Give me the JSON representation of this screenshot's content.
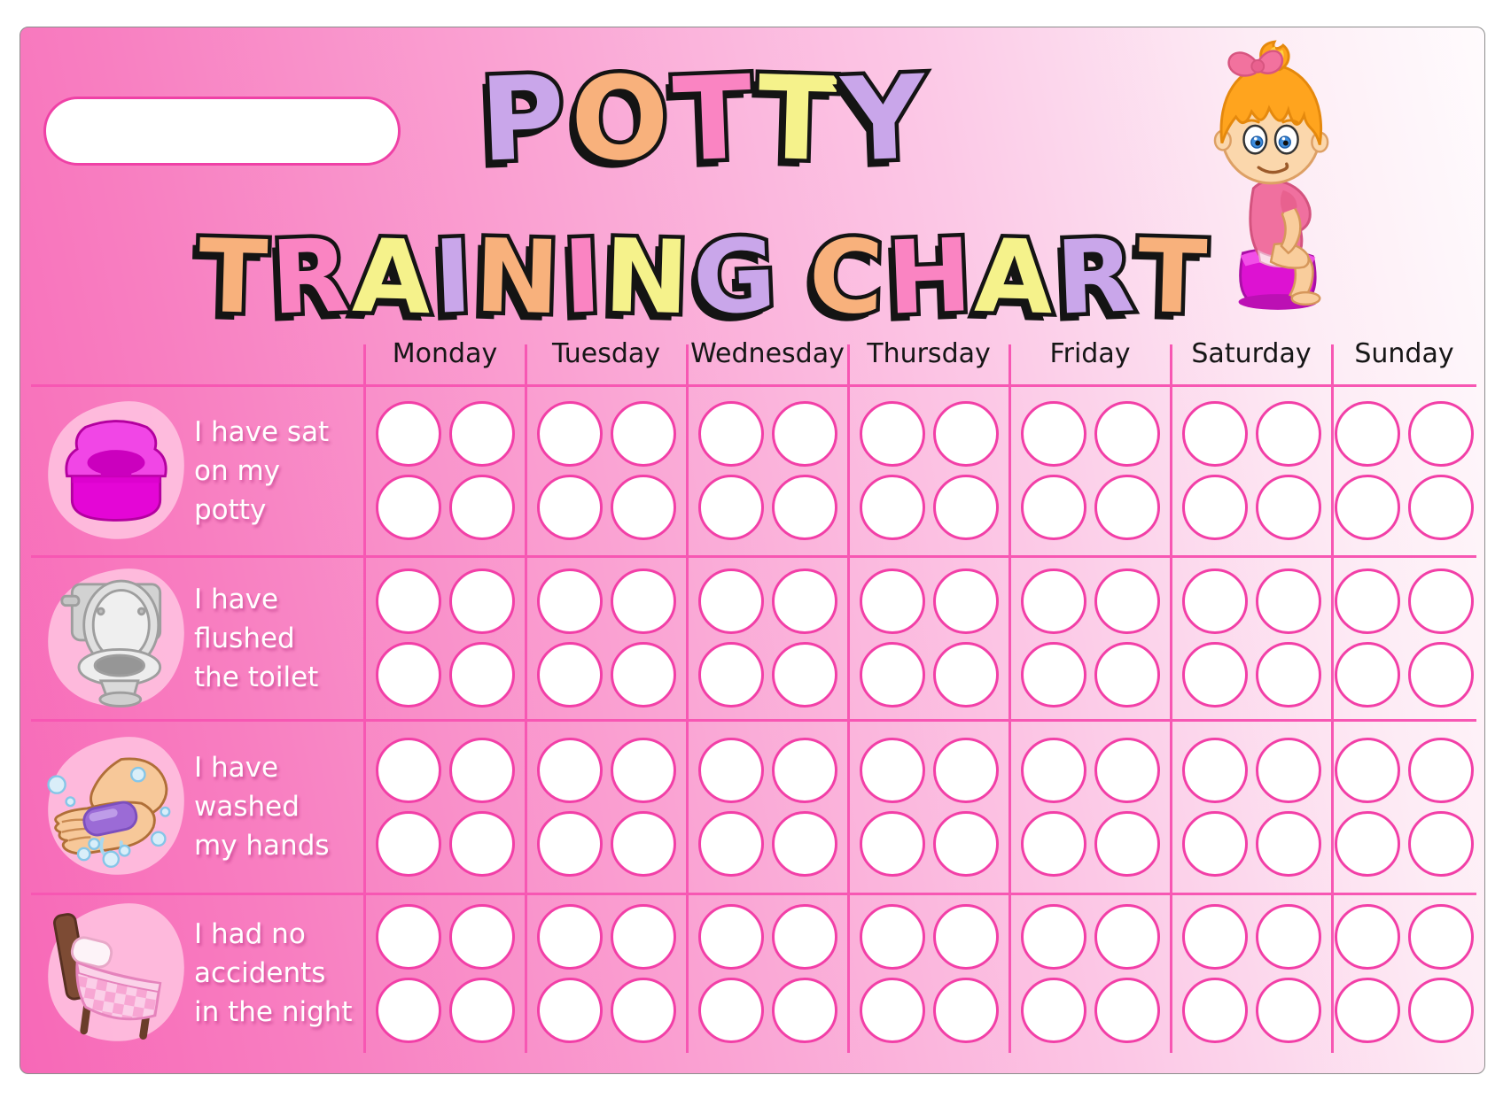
{
  "title": {
    "line1": "POTTY",
    "line2": "TRAINING CHART"
  },
  "name_field": {
    "value": ""
  },
  "header": {
    "days": [
      "Monday",
      "Tuesday",
      "Wednesday",
      "Thursday",
      "Friday",
      "Saturday",
      "Sunday"
    ]
  },
  "tasks": [
    {
      "icon": "potty-icon",
      "label_lines": [
        "I have sat",
        "on my potty"
      ]
    },
    {
      "icon": "toilet-icon",
      "label_lines": [
        "I have",
        "flushed",
        "the toilet"
      ]
    },
    {
      "icon": "washing-hands-icon",
      "label_lines": [
        "I have",
        "washed",
        "my hands"
      ]
    },
    {
      "icon": "bed-icon",
      "label_lines": [
        "I had no",
        "accidents",
        "in the night"
      ]
    }
  ],
  "sticker_grid": {
    "rows_per_cell": 2,
    "cols_per_cell": 2,
    "slots_per_cell": 4
  },
  "illustration": {
    "name": "girl-on-potty"
  },
  "colors": {
    "letter_palette": [
      "#C9A6EA",
      "#F8B17C",
      "#FA84C2",
      "#F5F28B"
    ],
    "letter_outline": "#141414",
    "grid_line": "#F757B3",
    "circle_stroke": "#F23FA7",
    "name_box_border": "#EF41A6",
    "background_left": "#F768B7",
    "background_right": "#FFFBFD",
    "label_text": "#FFFFFF",
    "day_text": "#161616"
  }
}
